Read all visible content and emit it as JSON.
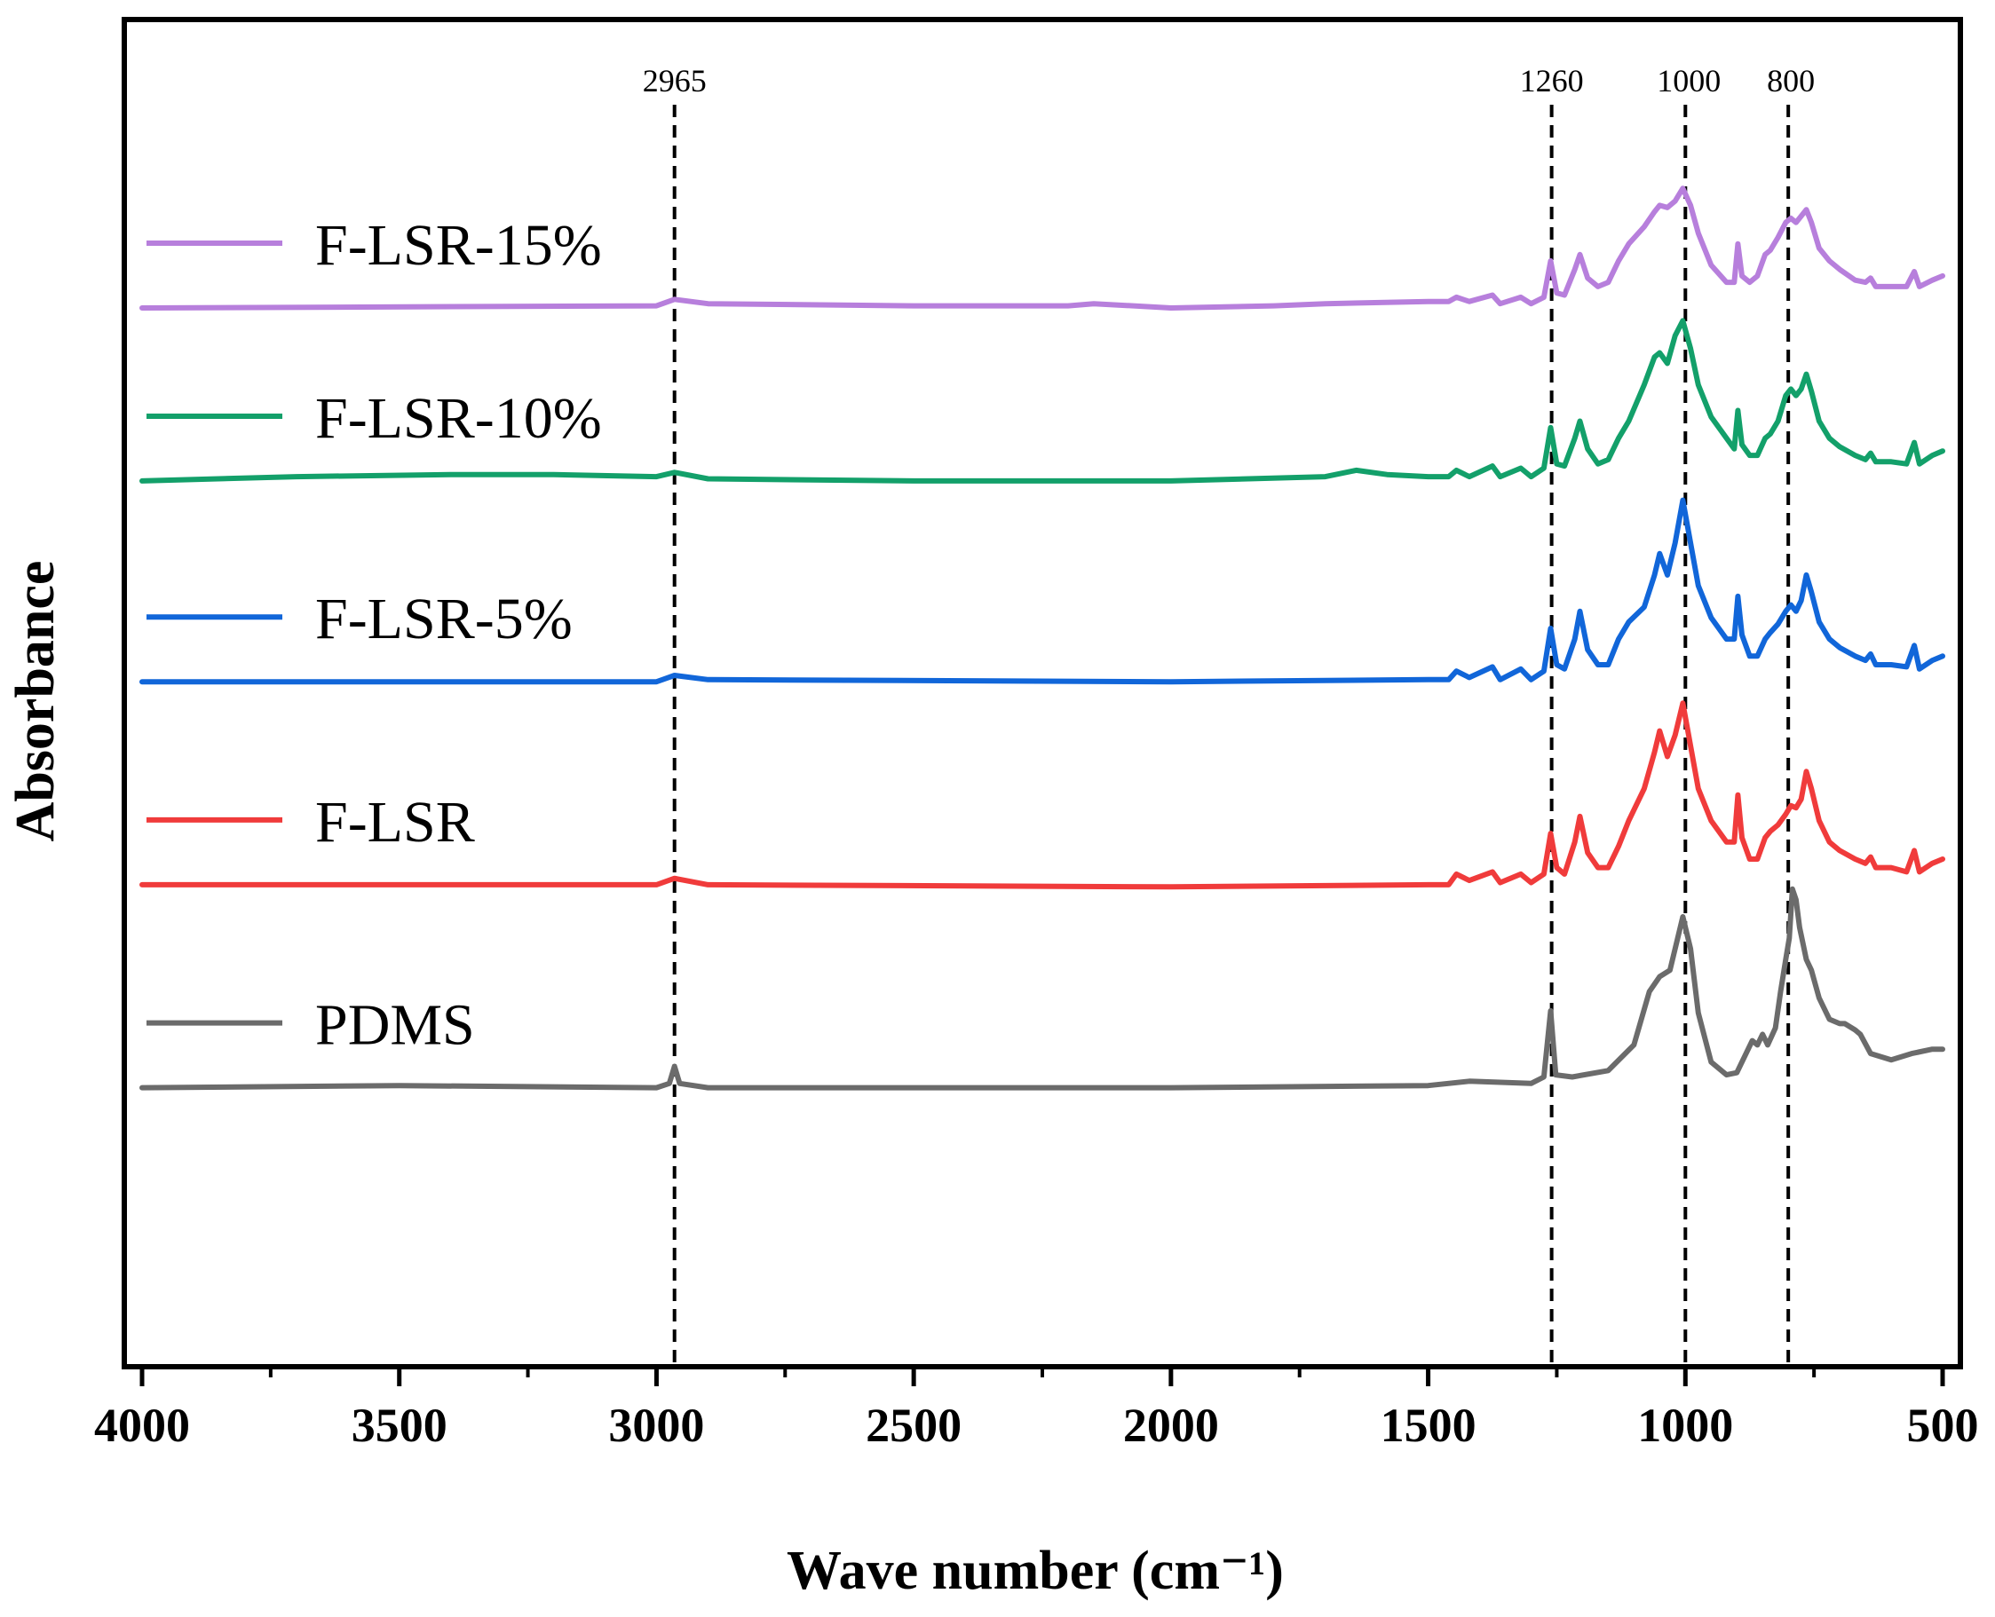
{
  "chart_data": {
    "type": "line",
    "title": "",
    "xlabel": "Wave number (cm⁻¹)",
    "ylabel": "Absorbance",
    "xlim": [
      4000,
      500
    ],
    "x_reversed": true,
    "ylim": [
      0,
      5.6
    ],
    "yticks_shown": false,
    "xticks": [
      "4000",
      "3500",
      "3000",
      "2500",
      "2000",
      "1500",
      "1000",
      "500"
    ],
    "reference_lines": [
      {
        "x": 2965,
        "label": "2965",
        "style": "dashed"
      },
      {
        "x": 1260,
        "label": "1260",
        "style": "dashed"
      },
      {
        "x": 1000,
        "label": "1000",
        "style": "dashed"
      },
      {
        "x": 800,
        "label": "800",
        "style": "dashed"
      }
    ],
    "legend": {
      "placement": "left, next to each curve"
    },
    "series": [
      {
        "name": "PDMS",
        "color": "#6b6b6b",
        "offset": 0.6,
        "points": [
          [
            4000,
            0.0
          ],
          [
            3500,
            0.01
          ],
          [
            3000,
            0.0
          ],
          [
            2975,
            0.02
          ],
          [
            2965,
            0.1
          ],
          [
            2955,
            0.02
          ],
          [
            2900,
            0.0
          ],
          [
            2000,
            0.0
          ],
          [
            1500,
            0.01
          ],
          [
            1420,
            0.03
          ],
          [
            1300,
            0.02
          ],
          [
            1275,
            0.05
          ],
          [
            1262,
            0.36
          ],
          [
            1252,
            0.06
          ],
          [
            1220,
            0.05
          ],
          [
            1150,
            0.08
          ],
          [
            1100,
            0.2
          ],
          [
            1070,
            0.45
          ],
          [
            1050,
            0.52
          ],
          [
            1030,
            0.55
          ],
          [
            1015,
            0.7
          ],
          [
            1005,
            0.8
          ],
          [
            990,
            0.65
          ],
          [
            975,
            0.35
          ],
          [
            950,
            0.12
          ],
          [
            920,
            0.06
          ],
          [
            900,
            0.07
          ],
          [
            870,
            0.22
          ],
          [
            860,
            0.2
          ],
          [
            850,
            0.25
          ],
          [
            840,
            0.2
          ],
          [
            825,
            0.28
          ],
          [
            815,
            0.45
          ],
          [
            805,
            0.6
          ],
          [
            798,
            0.7
          ],
          [
            792,
            0.93
          ],
          [
            785,
            0.88
          ],
          [
            778,
            0.75
          ],
          [
            765,
            0.6
          ],
          [
            755,
            0.55
          ],
          [
            740,
            0.42
          ],
          [
            720,
            0.32
          ],
          [
            700,
            0.3
          ],
          [
            690,
            0.3
          ],
          [
            670,
            0.27
          ],
          [
            660,
            0.25
          ],
          [
            640,
            0.16
          ],
          [
            600,
            0.13
          ],
          [
            560,
            0.16
          ],
          [
            520,
            0.18
          ],
          [
            500,
            0.18
          ]
        ]
      },
      {
        "name": "F-LSR",
        "color": "#f03b3b",
        "offset": 1.55,
        "points": [
          [
            4000,
            0.0
          ],
          [
            3000,
            0.0
          ],
          [
            2965,
            0.03
          ],
          [
            2900,
            0.0
          ],
          [
            2000,
            -0.01
          ],
          [
            1500,
            0.0
          ],
          [
            1460,
            0.0
          ],
          [
            1445,
            0.05
          ],
          [
            1420,
            0.02
          ],
          [
            1375,
            0.06
          ],
          [
            1360,
            0.01
          ],
          [
            1320,
            0.05
          ],
          [
            1300,
            0.01
          ],
          [
            1275,
            0.05
          ],
          [
            1262,
            0.24
          ],
          [
            1250,
            0.08
          ],
          [
            1235,
            0.05
          ],
          [
            1215,
            0.2
          ],
          [
            1205,
            0.32
          ],
          [
            1190,
            0.15
          ],
          [
            1170,
            0.08
          ],
          [
            1150,
            0.08
          ],
          [
            1130,
            0.18
          ],
          [
            1110,
            0.3
          ],
          [
            1080,
            0.45
          ],
          [
            1060,
            0.62
          ],
          [
            1050,
            0.72
          ],
          [
            1035,
            0.6
          ],
          [
            1020,
            0.7
          ],
          [
            1005,
            0.85
          ],
          [
            990,
            0.65
          ],
          [
            975,
            0.45
          ],
          [
            950,
            0.3
          ],
          [
            920,
            0.2
          ],
          [
            905,
            0.2
          ],
          [
            898,
            0.42
          ],
          [
            890,
            0.22
          ],
          [
            875,
            0.12
          ],
          [
            860,
            0.12
          ],
          [
            845,
            0.22
          ],
          [
            835,
            0.25
          ],
          [
            820,
            0.28
          ],
          [
            805,
            0.33
          ],
          [
            795,
            0.37
          ],
          [
            785,
            0.36
          ],
          [
            775,
            0.4
          ],
          [
            765,
            0.53
          ],
          [
            755,
            0.45
          ],
          [
            740,
            0.3
          ],
          [
            720,
            0.2
          ],
          [
            700,
            0.16
          ],
          [
            670,
            0.12
          ],
          [
            650,
            0.1
          ],
          [
            640,
            0.13
          ],
          [
            630,
            0.08
          ],
          [
            600,
            0.08
          ],
          [
            570,
            0.06
          ],
          [
            555,
            0.16
          ],
          [
            545,
            0.06
          ],
          [
            520,
            0.1
          ],
          [
            500,
            0.12
          ]
        ]
      },
      {
        "name": "F-LSR-5%",
        "color": "#1166d9",
        "offset": 2.5,
        "points": [
          [
            4000,
            0.0
          ],
          [
            3000,
            0.0
          ],
          [
            2965,
            0.03
          ],
          [
            2900,
            0.01
          ],
          [
            2000,
            0.0
          ],
          [
            1500,
            0.01
          ],
          [
            1460,
            0.01
          ],
          [
            1445,
            0.05
          ],
          [
            1420,
            0.02
          ],
          [
            1375,
            0.07
          ],
          [
            1360,
            0.01
          ],
          [
            1320,
            0.06
          ],
          [
            1300,
            0.01
          ],
          [
            1275,
            0.05
          ],
          [
            1262,
            0.25
          ],
          [
            1250,
            0.08
          ],
          [
            1235,
            0.06
          ],
          [
            1215,
            0.2
          ],
          [
            1205,
            0.33
          ],
          [
            1190,
            0.15
          ],
          [
            1170,
            0.08
          ],
          [
            1150,
            0.08
          ],
          [
            1130,
            0.2
          ],
          [
            1110,
            0.28
          ],
          [
            1080,
            0.35
          ],
          [
            1060,
            0.5
          ],
          [
            1050,
            0.6
          ],
          [
            1035,
            0.5
          ],
          [
            1020,
            0.65
          ],
          [
            1005,
            0.85
          ],
          [
            990,
            0.65
          ],
          [
            975,
            0.45
          ],
          [
            950,
            0.3
          ],
          [
            920,
            0.2
          ],
          [
            905,
            0.2
          ],
          [
            898,
            0.4
          ],
          [
            890,
            0.22
          ],
          [
            875,
            0.12
          ],
          [
            860,
            0.12
          ],
          [
            845,
            0.2
          ],
          [
            835,
            0.23
          ],
          [
            820,
            0.27
          ],
          [
            805,
            0.33
          ],
          [
            795,
            0.36
          ],
          [
            785,
            0.33
          ],
          [
            775,
            0.38
          ],
          [
            765,
            0.5
          ],
          [
            755,
            0.42
          ],
          [
            740,
            0.28
          ],
          [
            720,
            0.2
          ],
          [
            700,
            0.16
          ],
          [
            670,
            0.12
          ],
          [
            650,
            0.1
          ],
          [
            640,
            0.13
          ],
          [
            630,
            0.08
          ],
          [
            600,
            0.08
          ],
          [
            570,
            0.07
          ],
          [
            555,
            0.17
          ],
          [
            545,
            0.06
          ],
          [
            520,
            0.1
          ],
          [
            500,
            0.12
          ]
        ]
      },
      {
        "name": "F-LSR-10%",
        "color": "#13a06a",
        "offset": 3.44,
        "points": [
          [
            4000,
            0.0
          ],
          [
            3700,
            0.02
          ],
          [
            3400,
            0.03
          ],
          [
            3200,
            0.03
          ],
          [
            3000,
            0.02
          ],
          [
            2965,
            0.04
          ],
          [
            2900,
            0.01
          ],
          [
            2500,
            0.0
          ],
          [
            2000,
            0.0
          ],
          [
            1700,
            0.02
          ],
          [
            1640,
            0.05
          ],
          [
            1580,
            0.03
          ],
          [
            1500,
            0.02
          ],
          [
            1460,
            0.02
          ],
          [
            1445,
            0.05
          ],
          [
            1420,
            0.02
          ],
          [
            1375,
            0.07
          ],
          [
            1360,
            0.02
          ],
          [
            1320,
            0.06
          ],
          [
            1300,
            0.02
          ],
          [
            1275,
            0.06
          ],
          [
            1262,
            0.25
          ],
          [
            1250,
            0.08
          ],
          [
            1235,
            0.07
          ],
          [
            1215,
            0.2
          ],
          [
            1205,
            0.28
          ],
          [
            1190,
            0.15
          ],
          [
            1170,
            0.08
          ],
          [
            1150,
            0.1
          ],
          [
            1130,
            0.2
          ],
          [
            1110,
            0.28
          ],
          [
            1080,
            0.45
          ],
          [
            1060,
            0.58
          ],
          [
            1050,
            0.6
          ],
          [
            1035,
            0.55
          ],
          [
            1020,
            0.68
          ],
          [
            1005,
            0.75
          ],
          [
            990,
            0.62
          ],
          [
            975,
            0.45
          ],
          [
            950,
            0.3
          ],
          [
            920,
            0.2
          ],
          [
            905,
            0.15
          ],
          [
            898,
            0.33
          ],
          [
            890,
            0.17
          ],
          [
            875,
            0.12
          ],
          [
            860,
            0.12
          ],
          [
            845,
            0.2
          ],
          [
            835,
            0.22
          ],
          [
            820,
            0.28
          ],
          [
            805,
            0.4
          ],
          [
            795,
            0.43
          ],
          [
            785,
            0.4
          ],
          [
            775,
            0.43
          ],
          [
            765,
            0.5
          ],
          [
            755,
            0.42
          ],
          [
            740,
            0.28
          ],
          [
            720,
            0.2
          ],
          [
            700,
            0.16
          ],
          [
            670,
            0.12
          ],
          [
            650,
            0.1
          ],
          [
            640,
            0.13
          ],
          [
            630,
            0.09
          ],
          [
            600,
            0.09
          ],
          [
            570,
            0.08
          ],
          [
            555,
            0.18
          ],
          [
            545,
            0.08
          ],
          [
            520,
            0.12
          ],
          [
            500,
            0.14
          ]
        ]
      },
      {
        "name": "F-LSR-15%",
        "color": "#b77fdc",
        "offset": 4.25,
        "points": [
          [
            4000,
            0.0
          ],
          [
            3000,
            0.01
          ],
          [
            2965,
            0.04
          ],
          [
            2900,
            0.02
          ],
          [
            2500,
            0.01
          ],
          [
            2200,
            0.01
          ],
          [
            2150,
            0.02
          ],
          [
            2000,
            0.0
          ],
          [
            1800,
            0.01
          ],
          [
            1700,
            0.02
          ],
          [
            1500,
            0.03
          ],
          [
            1460,
            0.03
          ],
          [
            1445,
            0.05
          ],
          [
            1420,
            0.03
          ],
          [
            1375,
            0.06
          ],
          [
            1360,
            0.02
          ],
          [
            1320,
            0.05
          ],
          [
            1300,
            0.02
          ],
          [
            1275,
            0.05
          ],
          [
            1262,
            0.22
          ],
          [
            1250,
            0.07
          ],
          [
            1235,
            0.06
          ],
          [
            1215,
            0.18
          ],
          [
            1205,
            0.25
          ],
          [
            1190,
            0.14
          ],
          [
            1170,
            0.1
          ],
          [
            1150,
            0.12
          ],
          [
            1130,
            0.22
          ],
          [
            1110,
            0.3
          ],
          [
            1080,
            0.38
          ],
          [
            1060,
            0.45
          ],
          [
            1050,
            0.48
          ],
          [
            1035,
            0.47
          ],
          [
            1020,
            0.5
          ],
          [
            1005,
            0.56
          ],
          [
            990,
            0.48
          ],
          [
            975,
            0.35
          ],
          [
            950,
            0.2
          ],
          [
            920,
            0.12
          ],
          [
            905,
            0.12
          ],
          [
            898,
            0.3
          ],
          [
            890,
            0.15
          ],
          [
            875,
            0.12
          ],
          [
            860,
            0.15
          ],
          [
            845,
            0.25
          ],
          [
            835,
            0.27
          ],
          [
            820,
            0.33
          ],
          [
            805,
            0.4
          ],
          [
            795,
            0.42
          ],
          [
            785,
            0.4
          ],
          [
            775,
            0.43
          ],
          [
            765,
            0.46
          ],
          [
            755,
            0.4
          ],
          [
            740,
            0.28
          ],
          [
            720,
            0.22
          ],
          [
            700,
            0.18
          ],
          [
            670,
            0.13
          ],
          [
            650,
            0.12
          ],
          [
            640,
            0.14
          ],
          [
            630,
            0.1
          ],
          [
            600,
            0.1
          ],
          [
            570,
            0.1
          ],
          [
            555,
            0.17
          ],
          [
            545,
            0.1
          ],
          [
            520,
            0.13
          ],
          [
            500,
            0.15
          ]
        ]
      }
    ]
  }
}
